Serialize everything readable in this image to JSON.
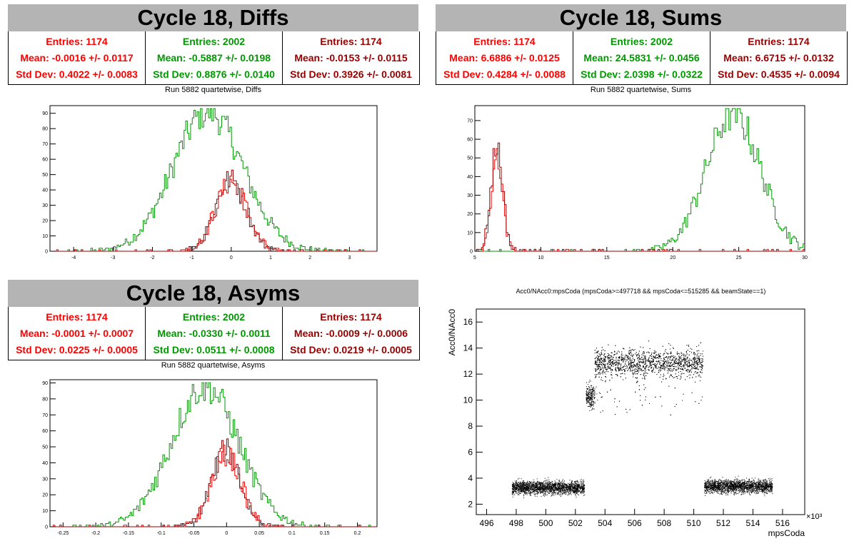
{
  "panels": [
    {
      "title": "Cycle 18, Diffs",
      "subtitle": "Run 5882 quartetwise, Diffs",
      "stats": [
        {
          "entries": "Entries: 1174",
          "mean": "Mean: -0.0016 +/- 0.0117",
          "std": "Std Dev: 0.4022 +/- 0.0083"
        },
        {
          "entries": "Entries: 2002",
          "mean": "Mean: -0.5887 +/- 0.0198",
          "std": "Std Dev: 0.8876 +/- 0.0140"
        },
        {
          "entries": "Entries: 1174",
          "mean": "Mean: -0.0153 +/- 0.0115",
          "std": "Std Dev: 0.3926 +/- 0.0081"
        }
      ]
    },
    {
      "title": "Cycle 18, Sums",
      "subtitle": "Run 5882 quartetwise, Sums",
      "stats": [
        {
          "entries": "Entries: 1174",
          "mean": "Mean: 6.6886 +/- 0.0125",
          "std": "Std Dev: 0.4284 +/- 0.0088"
        },
        {
          "entries": "Entries: 2002",
          "mean": "Mean: 24.5831 +/- 0.0456",
          "std": "Std Dev: 2.0398 +/- 0.0322"
        },
        {
          "entries": "Entries: 1174",
          "mean": "Mean: 6.6715 +/- 0.0132",
          "std": "Std Dev: 0.4535 +/- 0.0094"
        }
      ]
    },
    {
      "title": "Cycle 18, Asyms",
      "subtitle": "Run 5882 quartetwise, Asyms",
      "stats": [
        {
          "entries": "Entries: 1174",
          "mean": "Mean: -0.0001 +/- 0.0007",
          "std": "Std Dev: 0.0225 +/- 0.0005"
        },
        {
          "entries": "Entries: 2002",
          "mean": "Mean: -0.0330 +/- 0.0011",
          "std": "Std Dev: 0.0511 +/- 0.0008"
        },
        {
          "entries": "Entries: 1174",
          "mean": "Mean: -0.0009 +/- 0.0006",
          "std": "Std Dev: 0.0219 +/- 0.0005"
        }
      ]
    }
  ],
  "colors": {
    "red": "#ff0000",
    "green": "#009900",
    "dark": "#990000",
    "title_bg": "#b4b4b4"
  },
  "chart_data": [
    {
      "type": "bar",
      "xlim": [
        -4.6,
        3.7
      ],
      "ylim": [
        0,
        95
      ],
      "xticks": [
        -4,
        -3,
        -2,
        -1,
        0,
        1,
        2,
        3
      ],
      "yticks": [
        0,
        10,
        20,
        30,
        40,
        50,
        60,
        70,
        80,
        90
      ],
      "series": [
        {
          "color": "green",
          "mean": -0.5887,
          "std": 0.8876,
          "entries": 2002,
          "peak": 91
        },
        {
          "color": "red",
          "mean": -0.0016,
          "std": 0.4022,
          "entries": 1174,
          "peak": 45
        },
        {
          "color": "dark",
          "mean": -0.0153,
          "std": 0.3926,
          "entries": 1174,
          "peak": 47
        }
      ]
    },
    {
      "type": "bar",
      "xlim": [
        5,
        30
      ],
      "ylim": [
        0,
        78
      ],
      "xticks": [
        5,
        10,
        15,
        20,
        25,
        30
      ],
      "yticks": [
        0,
        10,
        20,
        30,
        40,
        50,
        60,
        70
      ],
      "series": [
        {
          "color": "green",
          "mean": 24.5831,
          "std": 2.0398,
          "entries": 2002,
          "peak": 74
        },
        {
          "color": "red",
          "mean": 6.6886,
          "std": 0.4284,
          "entries": 1174,
          "peak": 52
        },
        {
          "color": "dark",
          "mean": 6.6715,
          "std": 0.4535,
          "entries": 1174,
          "peak": 56
        }
      ]
    },
    {
      "type": "bar",
      "xlim": [
        -0.27,
        0.23
      ],
      "ylim": [
        0,
        92
      ],
      "xticks": [
        -0.25,
        -0.2,
        -0.15,
        -0.1,
        -0.05,
        0,
        0.05,
        0.1,
        0.15,
        0.2
      ],
      "yticks": [
        0,
        10,
        20,
        30,
        40,
        50,
        60,
        70,
        80,
        90
      ],
      "series": [
        {
          "color": "green",
          "mean": -0.033,
          "std": 0.0511,
          "entries": 2002,
          "peak": 88
        },
        {
          "color": "red",
          "mean": -0.0001,
          "std": 0.0225,
          "entries": 1174,
          "peak": 45
        },
        {
          "color": "dark",
          "mean": -0.0009,
          "std": 0.0219,
          "entries": 1174,
          "peak": 48
        }
      ]
    },
    {
      "type": "scatter",
      "title": "Acc0/NAcc0:mpsCoda (mpsCoda>=497718 && mpsCoda<=515285 && beamState==1)",
      "xlabel": "mpsCoda",
      "ylabel": "Acc0/NAcc0",
      "xunit": "×10³",
      "xlim": [
        495.3,
        517.5
      ],
      "ylim": [
        1.2,
        17
      ],
      "xticks": [
        496,
        498,
        500,
        502,
        504,
        506,
        508,
        510,
        512,
        514,
        516
      ],
      "yticks": [
        2,
        4,
        6,
        8,
        10,
        12,
        14,
        16
      ],
      "clusters": [
        {
          "x": [
            497.7,
            502.6
          ],
          "y": 3.3,
          "spread": 0.35
        },
        {
          "x": [
            502.7,
            503.3
          ],
          "y": 10.3,
          "spread": 0.6
        },
        {
          "x": [
            503.3,
            510.6
          ],
          "y": 12.9,
          "spread": 0.75
        },
        {
          "x": [
            510.7,
            515.3
          ],
          "y": 3.4,
          "spread": 0.35
        }
      ]
    }
  ]
}
